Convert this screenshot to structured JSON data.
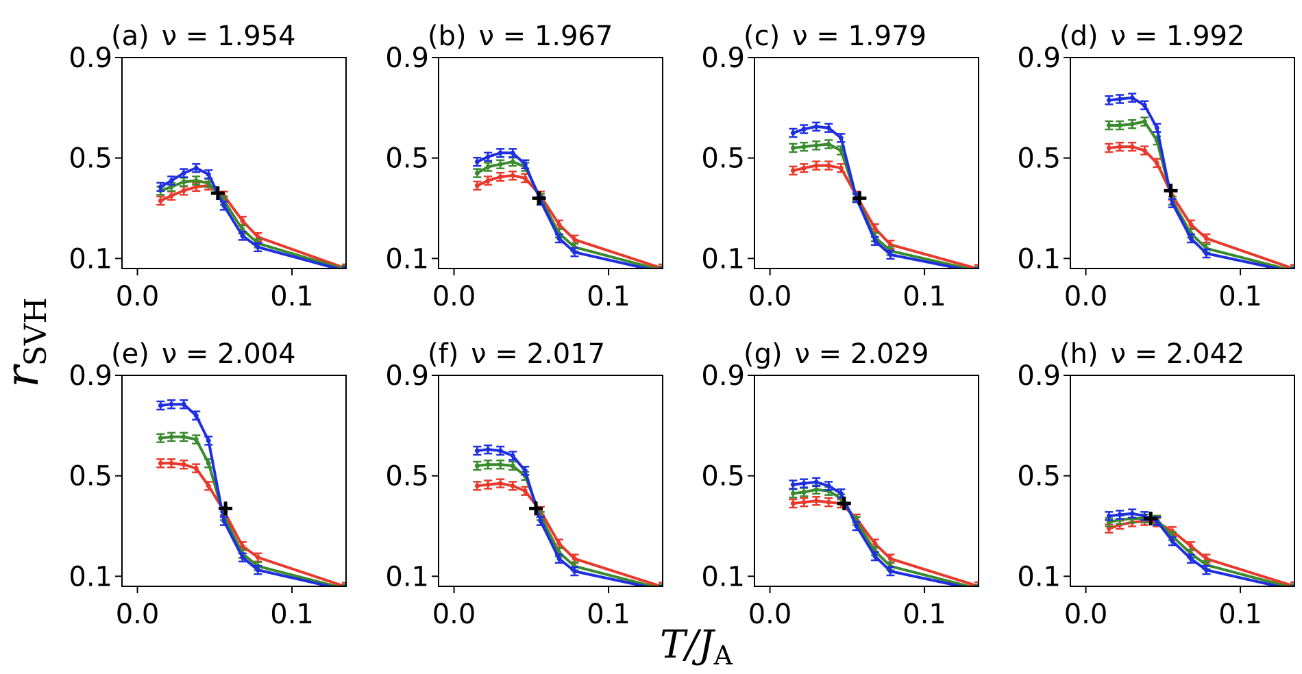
{
  "figure": {
    "ylabel": "r",
    "ylabel_sub": "SVH",
    "xlabel": "T/J",
    "xlabel_sub": "A"
  },
  "colors": {
    "red": "#e8392c",
    "green": "#3a8a2e",
    "blue": "#1f2fe0",
    "crossing": "#000000"
  },
  "chart_data": [
    {
      "type": "line",
      "panel": "(a)",
      "nu": "ν = 1.954",
      "xticks": [
        "0.0",
        "0.1"
      ],
      "yticks": [
        "0.1",
        "0.5",
        "0.9"
      ],
      "xlim": [
        -0.01,
        0.135
      ],
      "ylim": [
        0.06,
        0.9
      ],
      "x": [
        0.015,
        0.022,
        0.03,
        0.038,
        0.046,
        0.056,
        0.068,
        0.078,
        0.135
      ],
      "series": [
        {
          "name": "red",
          "values": [
            0.33,
            0.35,
            0.37,
            0.385,
            0.39,
            0.35,
            0.25,
            0.185,
            0.06
          ]
        },
        {
          "name": "green",
          "values": [
            0.37,
            0.385,
            0.405,
            0.41,
            0.4,
            0.33,
            0.215,
            0.16,
            0.055
          ]
        },
        {
          "name": "blue",
          "values": [
            0.385,
            0.41,
            0.44,
            0.46,
            0.435,
            0.31,
            0.19,
            0.145,
            0.05
          ]
        }
      ],
      "crossing": {
        "x": 0.052,
        "y": 0.36
      }
    },
    {
      "type": "line",
      "panel": "(b)",
      "nu": "ν = 1.967",
      "xticks": [
        "0.0",
        "0.1"
      ],
      "yticks": [
        "0.1",
        "0.5",
        "0.9"
      ],
      "xlim": [
        -0.01,
        0.135
      ],
      "ylim": [
        0.06,
        0.9
      ],
      "x": [
        0.015,
        0.022,
        0.03,
        0.038,
        0.046,
        0.056,
        0.068,
        0.078,
        0.135
      ],
      "series": [
        {
          "name": "red",
          "values": [
            0.39,
            0.41,
            0.425,
            0.43,
            0.42,
            0.35,
            0.235,
            0.175,
            0.06
          ]
        },
        {
          "name": "green",
          "values": [
            0.44,
            0.465,
            0.475,
            0.485,
            0.465,
            0.34,
            0.2,
            0.145,
            0.052
          ]
        },
        {
          "name": "blue",
          "values": [
            0.485,
            0.505,
            0.52,
            0.52,
            0.475,
            0.33,
            0.18,
            0.125,
            0.045
          ]
        }
      ],
      "crossing": {
        "x": 0.055,
        "y": 0.34
      }
    },
    {
      "type": "line",
      "panel": "(c)",
      "nu": "ν = 1.979",
      "xticks": [
        "0.0",
        "0.1"
      ],
      "yticks": [
        "0.1",
        "0.5",
        "0.9"
      ],
      "xlim": [
        -0.01,
        0.135
      ],
      "ylim": [
        0.06,
        0.9
      ],
      "x": [
        0.015,
        0.022,
        0.03,
        0.038,
        0.046,
        0.056,
        0.068,
        0.078,
        0.135
      ],
      "series": [
        {
          "name": "red",
          "values": [
            0.45,
            0.46,
            0.47,
            0.47,
            0.46,
            0.35,
            0.22,
            0.155,
            0.058
          ]
        },
        {
          "name": "green",
          "values": [
            0.54,
            0.545,
            0.55,
            0.555,
            0.53,
            0.345,
            0.185,
            0.13,
            0.05
          ]
        },
        {
          "name": "blue",
          "values": [
            0.6,
            0.615,
            0.625,
            0.62,
            0.58,
            0.34,
            0.17,
            0.115,
            0.045
          ]
        }
      ],
      "crossing": {
        "x": 0.058,
        "y": 0.34
      }
    },
    {
      "type": "line",
      "panel": "(d)",
      "nu": "ν = 1.992",
      "xticks": [
        "0.0",
        "0.1"
      ],
      "yticks": [
        "0.1",
        "0.5",
        "0.9"
      ],
      "xlim": [
        -0.01,
        0.135
      ],
      "ylim": [
        0.06,
        0.9
      ],
      "x": [
        0.015,
        0.022,
        0.03,
        0.038,
        0.046,
        0.056,
        0.068,
        0.078,
        0.135
      ],
      "series": [
        {
          "name": "red",
          "values": [
            0.54,
            0.545,
            0.545,
            0.53,
            0.48,
            0.35,
            0.235,
            0.18,
            0.058
          ]
        },
        {
          "name": "green",
          "values": [
            0.63,
            0.63,
            0.635,
            0.645,
            0.57,
            0.33,
            0.2,
            0.14,
            0.05
          ]
        },
        {
          "name": "blue",
          "values": [
            0.73,
            0.735,
            0.74,
            0.71,
            0.62,
            0.32,
            0.18,
            0.12,
            0.045
          ]
        }
      ],
      "crossing": {
        "x": 0.055,
        "y": 0.37
      }
    },
    {
      "type": "line",
      "panel": "(e)",
      "nu": "ν = 2.004",
      "xticks": [
        "0.0",
        "0.1"
      ],
      "yticks": [
        "0.1",
        "0.5",
        "0.9"
      ],
      "xlim": [
        -0.01,
        0.135
      ],
      "ylim": [
        0.06,
        0.9
      ],
      "x": [
        0.015,
        0.022,
        0.03,
        0.038,
        0.046,
        0.056,
        0.068,
        0.078,
        0.135
      ],
      "series": [
        {
          "name": "red",
          "values": [
            0.55,
            0.55,
            0.545,
            0.53,
            0.46,
            0.36,
            0.22,
            0.175,
            0.058
          ]
        },
        {
          "name": "green",
          "values": [
            0.65,
            0.655,
            0.655,
            0.645,
            0.55,
            0.34,
            0.19,
            0.14,
            0.05
          ]
        },
        {
          "name": "blue",
          "values": [
            0.78,
            0.785,
            0.785,
            0.74,
            0.64,
            0.32,
            0.175,
            0.125,
            0.045
          ]
        }
      ],
      "crossing": {
        "x": 0.057,
        "y": 0.37
      }
    },
    {
      "type": "line",
      "panel": "(f)",
      "nu": "ν = 2.017",
      "xticks": [
        "0.0",
        "0.1"
      ],
      "yticks": [
        "0.1",
        "0.5",
        "0.9"
      ],
      "xlim": [
        -0.01,
        0.135
      ],
      "ylim": [
        0.06,
        0.9
      ],
      "x": [
        0.015,
        0.022,
        0.03,
        0.038,
        0.046,
        0.056,
        0.068,
        0.078,
        0.135
      ],
      "series": [
        {
          "name": "red",
          "values": [
            0.46,
            0.465,
            0.47,
            0.46,
            0.44,
            0.36,
            0.23,
            0.17,
            0.058
          ]
        },
        {
          "name": "green",
          "values": [
            0.54,
            0.545,
            0.545,
            0.54,
            0.5,
            0.34,
            0.195,
            0.14,
            0.05
          ]
        },
        {
          "name": "blue",
          "values": [
            0.6,
            0.605,
            0.6,
            0.58,
            0.52,
            0.32,
            0.17,
            0.12,
            0.045
          ]
        }
      ],
      "crossing": {
        "x": 0.053,
        "y": 0.37
      }
    },
    {
      "type": "line",
      "panel": "(g)",
      "nu": "ν = 2.029",
      "xticks": [
        "0.0",
        "0.1"
      ],
      "yticks": [
        "0.1",
        "0.5",
        "0.9"
      ],
      "xlim": [
        -0.01,
        0.135
      ],
      "ylim": [
        0.06,
        0.9
      ],
      "x": [
        0.015,
        0.022,
        0.03,
        0.038,
        0.046,
        0.056,
        0.068,
        0.078,
        0.135
      ],
      "series": [
        {
          "name": "red",
          "values": [
            0.39,
            0.395,
            0.4,
            0.395,
            0.39,
            0.33,
            0.23,
            0.17,
            0.06
          ]
        },
        {
          "name": "green",
          "values": [
            0.43,
            0.435,
            0.445,
            0.44,
            0.41,
            0.32,
            0.2,
            0.14,
            0.05
          ]
        },
        {
          "name": "blue",
          "values": [
            0.465,
            0.47,
            0.475,
            0.46,
            0.43,
            0.3,
            0.18,
            0.12,
            0.045
          ]
        }
      ],
      "crossing": {
        "x": 0.048,
        "y": 0.39
      }
    },
    {
      "type": "line",
      "panel": "(h)",
      "nu": "ν = 2.042",
      "xticks": [
        "0.0",
        "0.1"
      ],
      "yticks": [
        "0.1",
        "0.5",
        "0.9"
      ],
      "xlim": [
        -0.01,
        0.135
      ],
      "ylim": [
        0.06,
        0.9
      ],
      "x": [
        0.015,
        0.022,
        0.03,
        0.038,
        0.046,
        0.056,
        0.068,
        0.078,
        0.135
      ],
      "series": [
        {
          "name": "red",
          "values": [
            0.29,
            0.305,
            0.315,
            0.32,
            0.315,
            0.28,
            0.22,
            0.17,
            0.06
          ]
        },
        {
          "name": "green",
          "values": [
            0.315,
            0.325,
            0.33,
            0.33,
            0.325,
            0.26,
            0.19,
            0.145,
            0.052
          ]
        },
        {
          "name": "blue",
          "values": [
            0.34,
            0.345,
            0.35,
            0.34,
            0.32,
            0.24,
            0.17,
            0.125,
            0.045
          ]
        }
      ],
      "crossing": {
        "x": 0.042,
        "y": 0.33
      }
    }
  ]
}
